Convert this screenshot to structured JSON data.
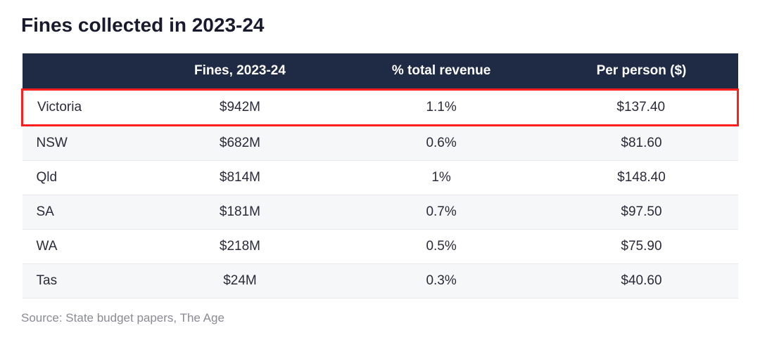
{
  "title": "Fines collected in 2023-24",
  "table": {
    "type": "table",
    "header_background": "#1f2a44",
    "header_text_color": "#ffffff",
    "row_stripe_color": "#f6f7f9",
    "row_border_color": "#e8e8ec",
    "highlight_border_color": "#ff1e1e",
    "font_size": 19,
    "columns": [
      {
        "label": "",
        "align": "left"
      },
      {
        "label": "Fines, 2023-24",
        "align": "center"
      },
      {
        "label": "% total revenue",
        "align": "center"
      },
      {
        "label": "Per person ($)",
        "align": "center"
      }
    ],
    "rows": [
      {
        "state": "Victoria",
        "fines": "$942M",
        "pct": "1.1%",
        "per_person": "$137.40",
        "highlight": true,
        "stripe": false
      },
      {
        "state": "NSW",
        "fines": "$682M",
        "pct": "0.6%",
        "per_person": "$81.60",
        "highlight": false,
        "stripe": true
      },
      {
        "state": "Qld",
        "fines": "$814M",
        "pct": "1%",
        "per_person": "$148.40",
        "highlight": false,
        "stripe": false
      },
      {
        "state": "SA",
        "fines": "$181M",
        "pct": "0.7%",
        "per_person": "$97.50",
        "highlight": false,
        "stripe": true
      },
      {
        "state": "WA",
        "fines": "$218M",
        "pct": "0.5%",
        "per_person": "$75.90",
        "highlight": false,
        "stripe": false
      },
      {
        "state": "Tas",
        "fines": "$24M",
        "pct": "0.3%",
        "per_person": "$40.60",
        "highlight": false,
        "stripe": true
      }
    ]
  },
  "source": "Source: State budget papers, The Age"
}
